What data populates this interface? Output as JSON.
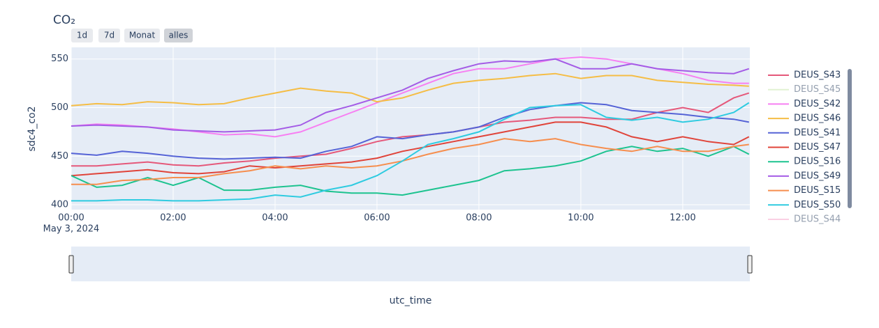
{
  "chart_data": {
    "type": "line",
    "title": "CO₂",
    "buttons": [
      {
        "label": "1d"
      },
      {
        "label": "7d"
      },
      {
        "label": "Monat"
      },
      {
        "label": "alles",
        "active": true
      }
    ],
    "x_label": "utc_time",
    "y_label": "sdc4_co2",
    "date_label": "May 3, 2024",
    "x": [
      "2024-05-03T00:00",
      "2024-05-03T00:30",
      "2024-05-03T01:00",
      "2024-05-03T01:30",
      "2024-05-03T02:00",
      "2024-05-03T02:30",
      "2024-05-03T03:00",
      "2024-05-03T03:30",
      "2024-05-03T04:00",
      "2024-05-03T04:30",
      "2024-05-03T05:00",
      "2024-05-03T05:30",
      "2024-05-03T06:00",
      "2024-05-03T06:30",
      "2024-05-03T07:00",
      "2024-05-03T07:30",
      "2024-05-03T08:00",
      "2024-05-03T08:30",
      "2024-05-03T09:00",
      "2024-05-03T09:30",
      "2024-05-03T10:00",
      "2024-05-03T10:30",
      "2024-05-03T11:00",
      "2024-05-03T11:30",
      "2024-05-03T12:00",
      "2024-05-03T12:30",
      "2024-05-03T13:00",
      "2024-05-03T13:18"
    ],
    "xlim": [
      "2024-05-03T00:00",
      "2024-05-03T13:19"
    ],
    "xticks": [
      {
        "value": "2024-05-03T00:00",
        "label": "00:00"
      },
      {
        "value": "2024-05-03T02:00",
        "label": "02:00"
      },
      {
        "value": "2024-05-03T04:00",
        "label": "04:00"
      },
      {
        "value": "2024-05-03T06:00",
        "label": "06:00"
      },
      {
        "value": "2024-05-03T08:00",
        "label": "08:00"
      },
      {
        "value": "2024-05-03T10:00",
        "label": "10:00"
      },
      {
        "value": "2024-05-03T12:00",
        "label": "12:00"
      }
    ],
    "ylim": [
      395,
      562
    ],
    "yticks": [
      400,
      450,
      500,
      550
    ],
    "grid": true,
    "series": [
      {
        "name": "DEUS_S43",
        "color": "#e5587a",
        "visible": true,
        "values": [
          440,
          440,
          442,
          444,
          441,
          440,
          443,
          445,
          448,
          450,
          452,
          458,
          465,
          470,
          472,
          475,
          480,
          485,
          487,
          490,
          490,
          488,
          488,
          495,
          500,
          495,
          510,
          515
        ]
      },
      {
        "name": "DEUS_S45",
        "color": "#c5e5a5",
        "visible": false
      },
      {
        "name": "DEUS_S42",
        "color": "#f77ff2",
        "visible": true,
        "values": [
          481,
          483,
          482,
          480,
          478,
          475,
          472,
          473,
          470,
          475,
          485,
          495,
          505,
          515,
          525,
          535,
          540,
          540,
          545,
          550,
          552,
          550,
          545,
          540,
          535,
          528,
          525,
          525
        ]
      },
      {
        "name": "DEUS_S46",
        "color": "#f5bd45",
        "visible": true,
        "values": [
          502,
          504,
          503,
          506,
          505,
          503,
          504,
          510,
          515,
          520,
          517,
          515,
          506,
          510,
          518,
          525,
          528,
          530,
          533,
          535,
          530,
          533,
          533,
          528,
          526,
          524,
          523,
          522
        ]
      },
      {
        "name": "DEUS_S41",
        "color": "#5563d6",
        "visible": true,
        "values": [
          453,
          451,
          455,
          453,
          450,
          448,
          447,
          448,
          449,
          448,
          455,
          460,
          470,
          468,
          472,
          475,
          480,
          490,
          498,
          502,
          505,
          503,
          497,
          495,
          493,
          490,
          488,
          485
        ]
      },
      {
        "name": "DEUS_S47",
        "color": "#e0443a",
        "visible": true,
        "values": [
          430,
          432,
          434,
          436,
          433,
          432,
          434,
          440,
          438,
          440,
          442,
          444,
          448,
          455,
          460,
          465,
          470,
          475,
          480,
          485,
          485,
          480,
          470,
          465,
          470,
          465,
          462,
          470
        ]
      },
      {
        "name": "DEUS_S16",
        "color": "#1dc38f",
        "visible": true,
        "values": [
          430,
          418,
          420,
          428,
          420,
          428,
          415,
          415,
          418,
          420,
          414,
          412,
          412,
          410,
          415,
          420,
          425,
          435,
          437,
          440,
          445,
          455,
          460,
          455,
          458,
          450,
          460,
          452
        ]
      },
      {
        "name": "DEUS_S49",
        "color": "#a45ce6",
        "visible": true,
        "values": [
          481,
          482,
          481,
          480,
          477,
          476,
          475,
          476,
          477,
          482,
          495,
          502,
          510,
          518,
          530,
          538,
          545,
          548,
          547,
          550,
          540,
          540,
          545,
          540,
          538,
          536,
          535,
          540
        ]
      },
      {
        "name": "DEUS_S15",
        "color": "#f68e4e",
        "visible": true,
        "values": [
          421,
          421,
          425,
          426,
          428,
          428,
          432,
          435,
          440,
          437,
          440,
          438,
          440,
          445,
          452,
          458,
          462,
          468,
          465,
          468,
          462,
          458,
          455,
          460,
          455,
          455,
          460,
          462
        ]
      },
      {
        "name": "DEUS_S50",
        "color": "#2ecbe0",
        "visible": true,
        "values": [
          404,
          404,
          405,
          405,
          404,
          404,
          405,
          406,
          410,
          408,
          415,
          420,
          430,
          445,
          462,
          468,
          475,
          488,
          500,
          502,
          503,
          490,
          487,
          490,
          485,
          488,
          495,
          505
        ]
      },
      {
        "name": "DEUS_S44",
        "color": "#f7a3c8",
        "visible": false
      }
    ]
  }
}
